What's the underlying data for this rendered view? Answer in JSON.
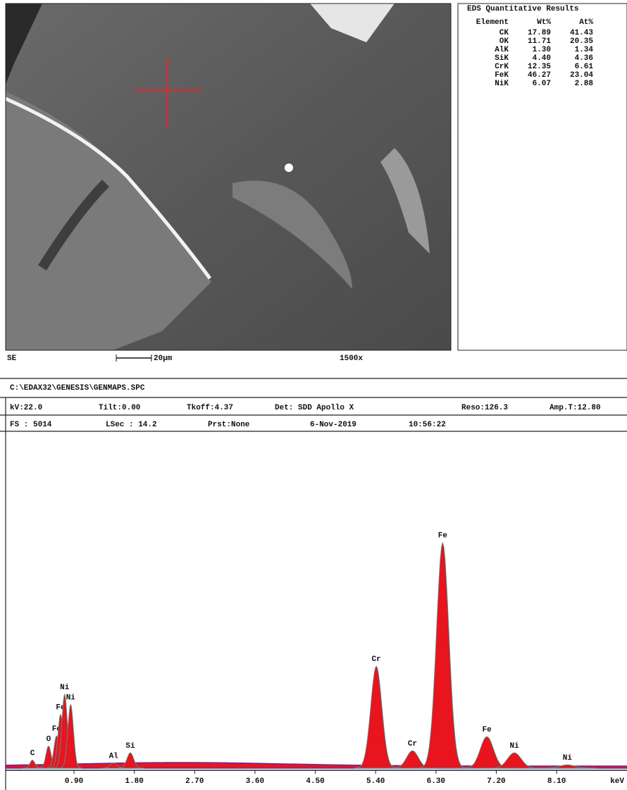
{
  "image": {
    "detector": "SE",
    "scale_bar": "20µm",
    "magnification": "1500x"
  },
  "results": {
    "title": "EDS Quantitative Results",
    "header": [
      "Element",
      "Wt%",
      "At%"
    ],
    "rows": [
      [
        "CK",
        "17.89",
        "41.43"
      ],
      [
        "OK",
        "11.71",
        "20.35"
      ],
      [
        "AlK",
        "1.30",
        "1.34"
      ],
      [
        "SiK",
        "4.40",
        "4.36"
      ],
      [
        "CrK",
        "12.35",
        "6.61"
      ],
      [
        "FeK",
        "46.27",
        "23.04"
      ],
      [
        "NiK",
        "6.07",
        "2.88"
      ]
    ]
  },
  "file": "C:\\EDAX32\\GENESIS\\GENMAPS.SPC",
  "info": [
    [
      "kV:22.0",
      "Tilt:0.00",
      "Tkoff:4.37",
      "Det: SDD Apollo X",
      "Reso:126.3",
      "Amp.T:12.80"
    ],
    [
      "FS : 5014",
      "LSec : 14.2",
      "Prst:None",
      "6-Nov-2019",
      "10:56:22"
    ]
  ],
  "chart_data": {
    "type": "spectrum",
    "x_label": "keV",
    "xlim": [
      -0.12,
      9.15
    ],
    "ylim": [
      0,
      5014
    ],
    "xticks": [
      {
        "value": 0.9,
        "label": "0.90"
      },
      {
        "value": 1.8,
        "label": "1.80"
      },
      {
        "value": 2.7,
        "label": "2.70"
      },
      {
        "value": 3.6,
        "label": "3.60"
      },
      {
        "value": 4.5,
        "label": "4.50"
      },
      {
        "value": 5.4,
        "label": "5.40"
      },
      {
        "value": 6.3,
        "label": "6.30"
      },
      {
        "value": 7.2,
        "label": "7.20"
      },
      {
        "value": 8.1,
        "label": "8.10"
      }
    ],
    "color": "#e8141e",
    "peaks": [
      {
        "label": "C",
        "keV": 0.28,
        "counts": 120
      },
      {
        "label": "O",
        "keV": 0.52,
        "counts": 330
      },
      {
        "label": "Fe",
        "keV": 0.64,
        "counts": 480
      },
      {
        "label": "Fe",
        "keV": 0.7,
        "counts": 800
      },
      {
        "label": "Ni",
        "keV": 0.76,
        "counts": 1100
      },
      {
        "label": "Ni",
        "keV": 0.85,
        "counts": 950
      },
      {
        "label": "Al",
        "keV": 1.49,
        "counts": 80
      },
      {
        "label": "Si",
        "keV": 1.74,
        "counts": 230
      },
      {
        "label": "Cr",
        "keV": 5.41,
        "counts": 1520
      },
      {
        "label": "Cr",
        "keV": 5.95,
        "counts": 260
      },
      {
        "label": "Fe",
        "keV": 6.4,
        "counts": 3360
      },
      {
        "label": "Fe",
        "keV": 7.06,
        "counts": 470
      },
      {
        "label": "Ni",
        "keV": 7.47,
        "counts": 230
      },
      {
        "label": "Ni",
        "keV": 8.26,
        "counts": 50
      }
    ]
  }
}
